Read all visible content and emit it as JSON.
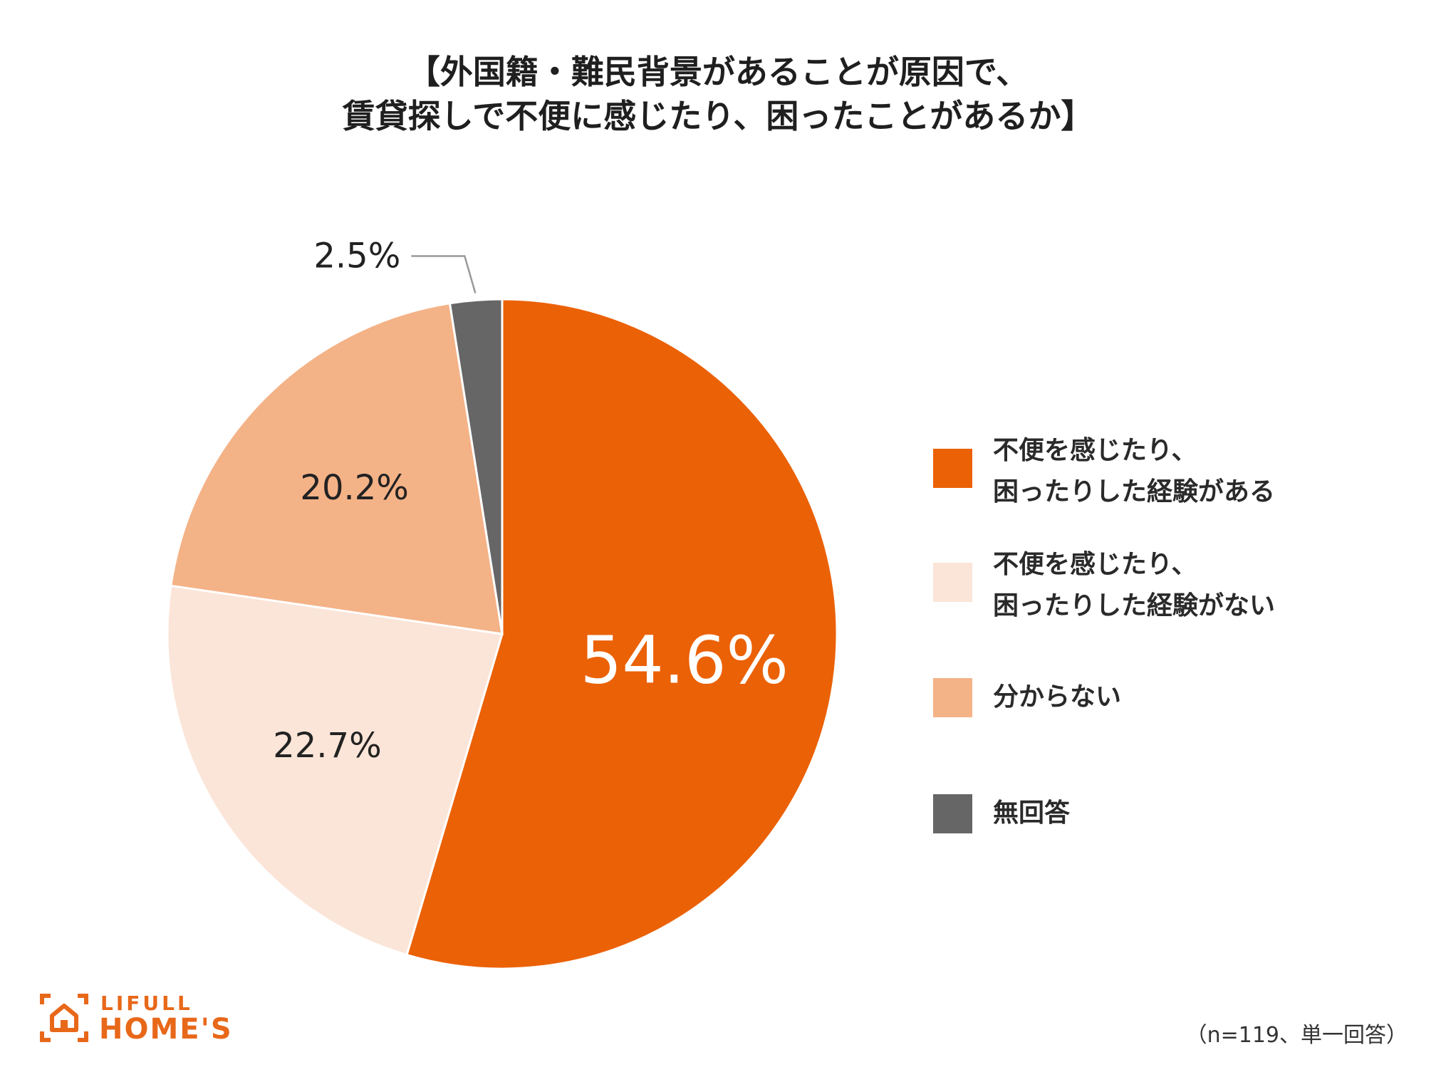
{
  "title_lines": [
    "【外国籍・難民背景があることが原因で、",
    "賃貸探しで不便に感じたり、困ったことがあるか】"
  ],
  "chart_data": {
    "type": "pie",
    "title": "【外国籍・難民背景があることが原因で、賃貸探しで不便に感じたり、困ったことがあるか】",
    "start": "12 o'clock",
    "direction": "clockwise",
    "slices": [
      {
        "label": "不便を感じたり、困ったりした経験がある",
        "value": 54.6,
        "display": "54.6%",
        "color": "#eb6105",
        "text_color": "#ffffff"
      },
      {
        "label": "不便を感じたり、困ったりした経験がない",
        "value": 22.7,
        "display": "22.7%",
        "color": "#fbe5d8",
        "text_color": "#222222"
      },
      {
        "label": "分からない",
        "value": 20.2,
        "display": "20.2%",
        "color": "#f4b287",
        "text_color": "#222222"
      },
      {
        "label": "無回答",
        "value": 2.5,
        "display": "2.5%",
        "color": "#666666",
        "text_color": "#222222"
      }
    ],
    "legend_position": "right"
  },
  "legend": [
    {
      "lines": [
        "不便を感じたり、",
        "困ったりした経験がある"
      ],
      "color": "#eb6105"
    },
    {
      "lines": [
        "不便を感じたり、",
        "困ったりした経験がない"
      ],
      "color": "#fbe5d8"
    },
    {
      "lines": [
        "分からない"
      ],
      "color": "#f4b287"
    },
    {
      "lines": [
        "無回答"
      ],
      "color": "#666666"
    }
  ],
  "footnote": "（n=119、単一回答）",
  "logo": {
    "top": "LIFULL",
    "bottom": "HOME'S",
    "color": "#e8681a"
  }
}
